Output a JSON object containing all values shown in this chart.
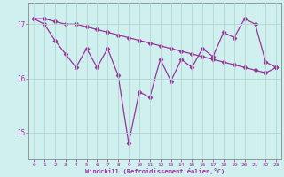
{
  "xlabel": "Windchill (Refroidissement éolien,°C)",
  "background_color": "#cff0ee",
  "grid_color": "#b0d8d0",
  "line_color": "#993399",
  "x": [
    0,
    1,
    2,
    3,
    4,
    5,
    6,
    7,
    8,
    9,
    10,
    11,
    12,
    13,
    14,
    15,
    16,
    17,
    18,
    19,
    20,
    21,
    22,
    23
  ],
  "y_actual": [
    17.1,
    17.0,
    16.7,
    16.45,
    16.2,
    16.55,
    16.2,
    16.55,
    16.05,
    14.8,
    15.75,
    15.65,
    16.35,
    15.95,
    16.35,
    16.2,
    16.55,
    16.4,
    16.85,
    16.75,
    17.1,
    17.0,
    16.3,
    16.2
  ],
  "y_trend": [
    17.1,
    17.1,
    17.05,
    17.0,
    17.0,
    16.95,
    16.9,
    16.85,
    16.8,
    16.75,
    16.7,
    16.65,
    16.6,
    16.55,
    16.5,
    16.45,
    16.4,
    16.35,
    16.3,
    16.25,
    16.2,
    16.15,
    16.1,
    16.2
  ],
  "ylim": [
    14.5,
    17.4
  ],
  "yticks": [
    15,
    16,
    17
  ],
  "xticks": [
    0,
    1,
    2,
    3,
    4,
    5,
    6,
    7,
    8,
    9,
    10,
    11,
    12,
    13,
    14,
    15,
    16,
    17,
    18,
    19,
    20,
    21,
    22,
    23
  ]
}
